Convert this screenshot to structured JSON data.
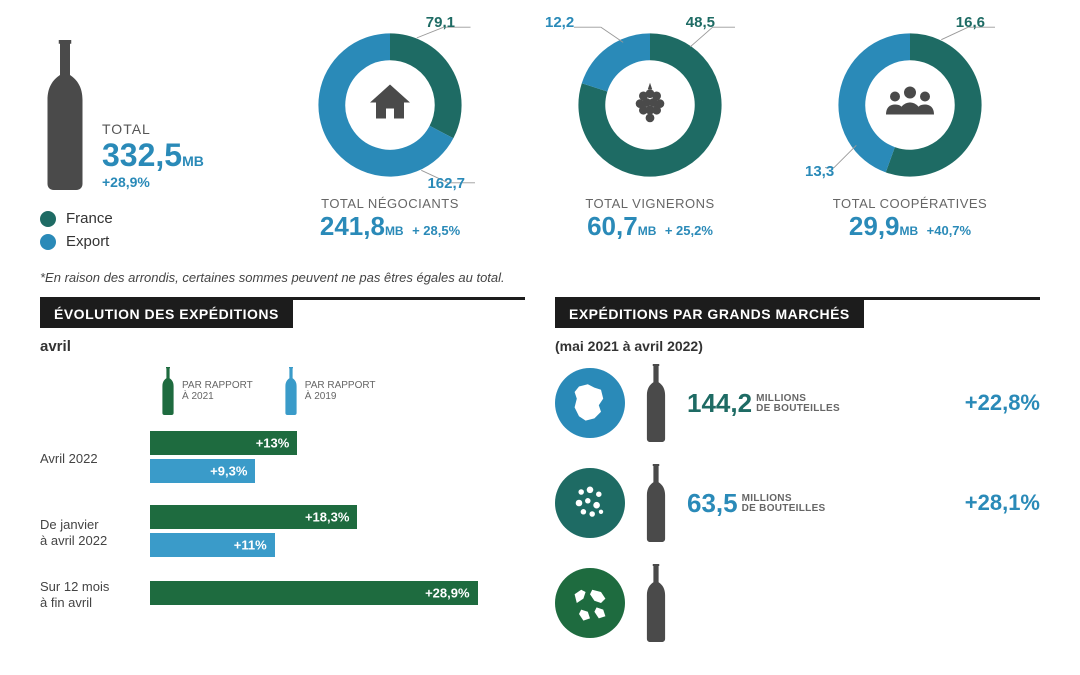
{
  "colors": {
    "france": "#1e6b64",
    "export": "#2a8ab8",
    "bar_green": "#1e6b3f",
    "bar_blue": "#3a9bc9",
    "icon_gray": "#4a4a4a",
    "black": "#1c1c1c"
  },
  "total": {
    "label": "TOTAL",
    "value": "332,5",
    "unit": "MB",
    "change": "+28,9%"
  },
  "legend": {
    "france": "France",
    "export": "Export"
  },
  "donuts": [
    {
      "title": "TOTAL NÉGOCIANTS",
      "value": "241,8",
      "unit": "MB",
      "change": "+ 28,5%",
      "france_value": "79,1",
      "export_value": "162,7",
      "france_pct": 32.7,
      "export_pct": 67.3,
      "icon": "house"
    },
    {
      "title": "TOTAL VIGNERONS",
      "value": "60,7",
      "unit": "MB",
      "change": "+ 25,2%",
      "france_value": "48,5",
      "export_value": "12,2",
      "france_pct": 79.9,
      "export_pct": 20.1,
      "icon": "grapes"
    },
    {
      "title": "TOTAL COOPÉRATIVES",
      "value": "29,9",
      "unit": "MB",
      "change": "+40,7%",
      "france_value": "16,6",
      "export_value": "13,3",
      "france_pct": 55.5,
      "export_pct": 44.5,
      "icon": "people"
    }
  ],
  "donut_style": {
    "outer_r": 80,
    "inner_r": 50,
    "stroke_width": 30
  },
  "footnote": "*En raison des arrondis, certaines sommes peuvent ne pas êtres égales au total.",
  "evolution": {
    "header": "ÉVOLUTION DES EXPÉDITIONS",
    "subtitle": "avril",
    "legend_2021": "PAR RAPPORT\nÀ 2021",
    "legend_2019": "PAR RAPPORT\nÀ 2019",
    "max_value": 30,
    "groups": [
      {
        "label": "Avril 2022",
        "v2021": 13,
        "t2021": "+13%",
        "v2019": 9.3,
        "t2019": "+9,3%"
      },
      {
        "label": "De janvier\nà avril 2022",
        "v2021": 18.3,
        "t2021": "+18,3%",
        "v2019": 11,
        "t2019": "+11%"
      },
      {
        "label": "Sur 12 mois\nà fin avril",
        "v2021": 28.9,
        "t2021": "+28,9%",
        "v2019": 0,
        "t2019": ""
      }
    ]
  },
  "markets": {
    "header": "EXPÉDITIONS PAR GRANDS MARCHÉS",
    "period": "(mai 2021 à avril 2022)",
    "unit_line1": "MILLIONS",
    "unit_line2": "DE BOUTEILLES",
    "rows": [
      {
        "region": "france",
        "color": "#2a8ab8",
        "value": "144,2",
        "value_color": "teal",
        "change": "+22,8%"
      },
      {
        "region": "europe",
        "color": "#1e6b64",
        "value": "63,5",
        "value_color": "blue",
        "change": "+28,1%"
      },
      {
        "region": "world",
        "color": "#1e6b3f",
        "value": "",
        "value_color": "teal",
        "change": ""
      }
    ]
  }
}
